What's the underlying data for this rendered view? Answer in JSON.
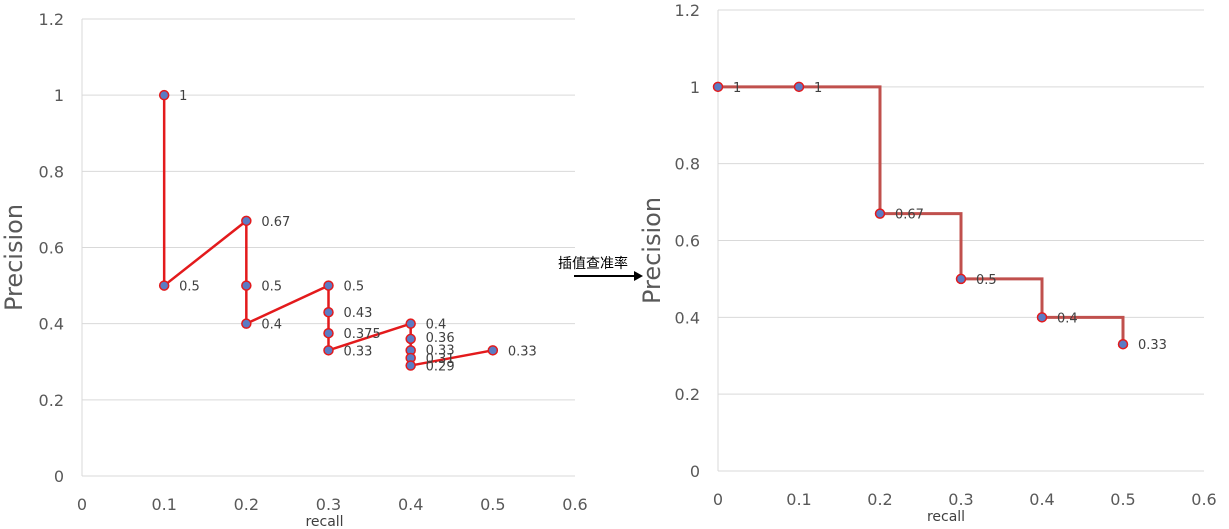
{
  "arrow_label": "插值查准率",
  "chart_data": [
    {
      "type": "line",
      "xlabel": "recall",
      "ylabel": "Precision",
      "xlim": [
        0,
        0.6
      ],
      "ylim": [
        0,
        1.2
      ],
      "xticks": [
        "0",
        "0.1",
        "0.2",
        "0.3",
        "0.4",
        "0.5",
        "0.6"
      ],
      "yticks": [
        "0",
        "0.2",
        "0.4",
        "0.6",
        "0.8",
        "1",
        "1.2"
      ],
      "grid": true,
      "legend": "none",
      "line_color": "#e31a1c",
      "marker_color": "#5b7bc4",
      "points": [
        {
          "x": 0.1,
          "y": 1,
          "label": "1"
        },
        {
          "x": 0.1,
          "y": 0.5,
          "label": "0.5"
        },
        {
          "x": 0.2,
          "y": 0.67,
          "label": "0.67"
        },
        {
          "x": 0.2,
          "y": 0.5,
          "label": "0.5"
        },
        {
          "x": 0.2,
          "y": 0.4,
          "label": "0.4"
        },
        {
          "x": 0.3,
          "y": 0.5,
          "label": "0.5"
        },
        {
          "x": 0.3,
          "y": 0.43,
          "label": "0.43"
        },
        {
          "x": 0.3,
          "y": 0.375,
          "label": "0.375"
        },
        {
          "x": 0.3,
          "y": 0.33,
          "label": "0.33"
        },
        {
          "x": 0.4,
          "y": 0.4,
          "label": "0.4"
        },
        {
          "x": 0.4,
          "y": 0.36,
          "label": "0.36"
        },
        {
          "x": 0.4,
          "y": 0.33,
          "label": "0.33"
        },
        {
          "x": 0.4,
          "y": 0.31,
          "label": "0.31"
        },
        {
          "x": 0.4,
          "y": 0.29,
          "label": "0.29"
        },
        {
          "x": 0.5,
          "y": 0.33,
          "label": "0.33"
        }
      ]
    },
    {
      "type": "line",
      "xlabel": "recall",
      "ylabel": "Precision",
      "xlim": [
        0,
        0.6
      ],
      "ylim": [
        0,
        1.2
      ],
      "xticks": [
        "0",
        "0.1",
        "0.2",
        "0.3",
        "0.4",
        "0.5",
        "0.6"
      ],
      "yticks": [
        "0",
        "0.2",
        "0.4",
        "0.6",
        "0.8",
        "1",
        "1.2"
      ],
      "grid": true,
      "legend": "none",
      "line_color": "#c0504d",
      "marker_color": "#5b7bc4",
      "points": [
        {
          "x": 0,
          "y": 1,
          "label": "1"
        },
        {
          "x": 0.1,
          "y": 1,
          "label": "1"
        },
        {
          "x": 0.2,
          "y": 0.67,
          "label": "0.67"
        },
        {
          "x": 0.3,
          "y": 0.5,
          "label": "0.5"
        },
        {
          "x": 0.4,
          "y": 0.4,
          "label": "0.4"
        },
        {
          "x": 0.5,
          "y": 0.33,
          "label": "0.33"
        }
      ]
    }
  ]
}
